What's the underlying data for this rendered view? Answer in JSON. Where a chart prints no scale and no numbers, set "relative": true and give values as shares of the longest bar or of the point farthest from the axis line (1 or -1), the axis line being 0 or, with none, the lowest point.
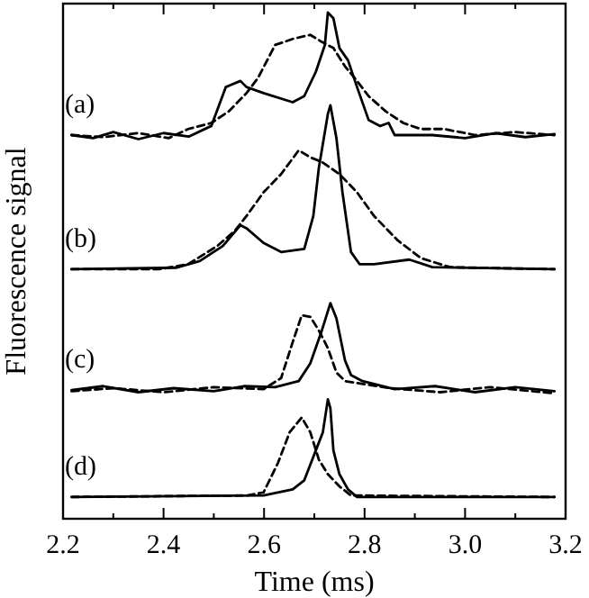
{
  "chart_data": {
    "type": "line",
    "relative": true,
    "xlabel": "Time (ms)",
    "ylabel": "Fluorescence signal",
    "xlim": [
      2.2,
      3.2
    ],
    "xticks": [
      {
        "value": 2.2,
        "label": "2.2"
      },
      {
        "value": 2.3,
        "label": null
      },
      {
        "value": 2.4,
        "label": "2.4"
      },
      {
        "value": 2.5,
        "label": null
      },
      {
        "value": 2.6,
        "label": "2.6"
      },
      {
        "value": 2.7,
        "label": null
      },
      {
        "value": 2.8,
        "label": "2.8"
      },
      {
        "value": 2.9,
        "label": null
      },
      {
        "value": 3.0,
        "label": "3.0"
      },
      {
        "value": 3.1,
        "label": null
      },
      {
        "value": 3.2,
        "label": "3.2"
      }
    ],
    "grid": false,
    "series": [
      {
        "color": "#000000",
        "line_style": "solid",
        "x": [
          2.217,
          2.26,
          2.3,
          2.35,
          2.4,
          2.45,
          2.495,
          2.524,
          2.553,
          2.565,
          2.599,
          2.657,
          2.68,
          2.703,
          2.721,
          2.727,
          2.738,
          2.75,
          2.767,
          2.785,
          2.808,
          2.831,
          2.848,
          2.86,
          2.935,
          3.0,
          3.06,
          3.12,
          3.178
        ],
        "values": [
          0.758,
          0.752,
          0.764,
          0.75,
          0.762,
          0.755,
          0.776,
          0.853,
          0.865,
          0.853,
          0.841,
          0.823,
          0.835,
          0.883,
          0.936,
          1,
          0.989,
          0.93,
          0.906,
          0.853,
          0.788,
          0.776,
          0.782,
          0.758,
          0.758,
          0.752,
          0.762,
          0.754,
          0.76
        ]
      },
      {
        "color": "#000000",
        "line_style": "dashed",
        "x": [
          2.217,
          2.28,
          2.35,
          2.41,
          2.449,
          2.495,
          2.53,
          2.565,
          2.588,
          2.622,
          2.657,
          2.692,
          2.715,
          2.738,
          2.761,
          2.785,
          2.808,
          2.842,
          2.877,
          2.912,
          2.958,
          3.02,
          3.1,
          3.178
        ],
        "values": [
          0.758,
          0.754,
          0.762,
          0.752,
          0.77,
          0.782,
          0.805,
          0.841,
          0.871,
          0.936,
          0.948,
          0.956,
          0.942,
          0.93,
          0.894,
          0.865,
          0.835,
          0.805,
          0.782,
          0.77,
          0.77,
          0.758,
          0.764,
          0.758
        ]
      },
      {
        "color": "#000000",
        "line_style": "solid",
        "x": [
          2.217,
          2.426,
          2.472,
          2.518,
          2.553,
          2.565,
          2.599,
          2.634,
          2.68,
          2.698,
          2.709,
          2.727,
          2.732,
          2.744,
          2.756,
          2.773,
          2.79,
          2.819,
          2.889,
          2.935,
          3.178
        ],
        "values": [
          0.493,
          0.496,
          0.509,
          0.539,
          0.58,
          0.574,
          0.545,
          0.527,
          0.533,
          0.598,
          0.693,
          0.8,
          0.817,
          0.752,
          0.645,
          0.527,
          0.503,
          0.503,
          0.512,
          0.497,
          0.493
        ]
      },
      {
        "color": "#000000",
        "line_style": "dashed",
        "x": [
          2.217,
          2.391,
          2.449,
          2.507,
          2.541,
          2.565,
          2.599,
          2.634,
          2.669,
          2.692,
          2.715,
          2.75,
          2.785,
          2.819,
          2.866,
          2.912,
          2.97,
          3.178
        ],
        "values": [
          0.493,
          0.493,
          0.503,
          0.539,
          0.568,
          0.598,
          0.645,
          0.681,
          0.728,
          0.714,
          0.705,
          0.681,
          0.645,
          0.598,
          0.55,
          0.515,
          0.497,
          0.493
        ]
      },
      {
        "color": "#000000",
        "line_style": "solid",
        "x": [
          2.217,
          2.28,
          2.35,
          2.42,
          2.5,
          2.56,
          2.622,
          2.669,
          2.692,
          2.715,
          2.732,
          2.744,
          2.761,
          2.773,
          2.796,
          2.86,
          2.94,
          3.02,
          3.1,
          3.178
        ],
        "values": [
          0.254,
          0.262,
          0.25,
          0.258,
          0.252,
          0.262,
          0.26,
          0.272,
          0.307,
          0.372,
          0.426,
          0.396,
          0.313,
          0.284,
          0.272,
          0.256,
          0.262,
          0.25,
          0.26,
          0.252
        ]
      },
      {
        "color": "#000000",
        "line_style": "dashed",
        "x": [
          2.217,
          2.3,
          2.4,
          2.5,
          2.599,
          2.634,
          2.657,
          2.675,
          2.692,
          2.709,
          2.727,
          2.744,
          2.761,
          2.85,
          2.95,
          3.05,
          3.178
        ],
        "values": [
          0.252,
          0.258,
          0.25,
          0.26,
          0.256,
          0.278,
          0.349,
          0.402,
          0.399,
          0.372,
          0.337,
          0.289,
          0.272,
          0.258,
          0.25,
          0.26,
          0.248
        ]
      },
      {
        "color": "#000000",
        "line_style": "solid",
        "x": [
          2.217,
          2.599,
          2.657,
          2.68,
          2.703,
          2.717,
          2.727,
          2.732,
          2.738,
          2.75,
          2.767,
          2.785,
          3.178
        ],
        "values": [
          0.043,
          0.046,
          0.058,
          0.076,
          0.135,
          0.171,
          0.236,
          0.218,
          0.135,
          0.088,
          0.058,
          0.043,
          0.043
        ]
      },
      {
        "color": "#000000",
        "line_style": "dashed",
        "x": [
          2.217,
          2.565,
          2.599,
          2.628,
          2.651,
          2.675,
          2.692,
          2.709,
          2.727,
          2.75,
          2.773,
          3.178
        ],
        "values": [
          0.043,
          0.046,
          0.052,
          0.111,
          0.171,
          0.2,
          0.171,
          0.117,
          0.088,
          0.064,
          0.046,
          0.043
        ]
      }
    ],
    "annotations": [
      "(a)",
      "(b)",
      "(c)",
      "(d)"
    ]
  }
}
